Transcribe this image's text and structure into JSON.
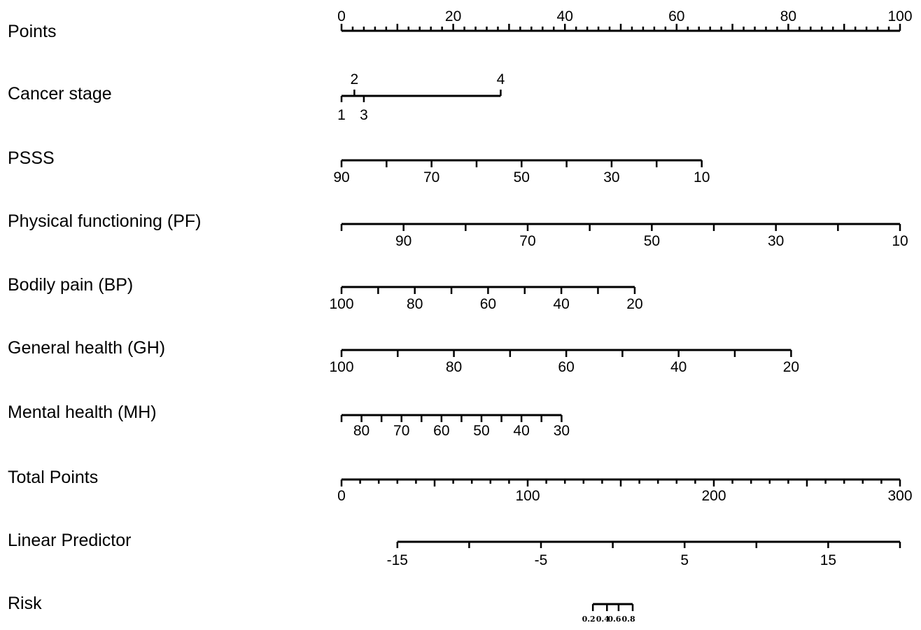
{
  "chart_data": {
    "type": "nomogram",
    "title": "",
    "rows": [
      {
        "label": "Points",
        "ticks": [
          {
            "value": 0,
            "label": "0"
          },
          {
            "value": 20,
            "label": "20"
          },
          {
            "value": 40,
            "label": "40"
          },
          {
            "value": 60,
            "label": "60"
          },
          {
            "value": 80,
            "label": "80"
          },
          {
            "value": 100,
            "label": "100"
          }
        ],
        "points_range": [
          0,
          100
        ],
        "minor_step": 2
      },
      {
        "label": "Cancer stage",
        "values": [
          {
            "level": "1",
            "points": 0
          },
          {
            "level": "2",
            "points": 2.3
          },
          {
            "level": "3",
            "points": 4.0
          },
          {
            "level": "4",
            "points": 28.5
          }
        ]
      },
      {
        "label": "PSSS",
        "ticks": [
          {
            "value": 90,
            "label": "90",
            "points": 0
          },
          {
            "value": 80,
            "label": "",
            "points": 8.06
          },
          {
            "value": 70,
            "label": "70",
            "points": 16.12
          },
          {
            "value": 60,
            "label": "",
            "points": 24.18
          },
          {
            "value": 50,
            "label": "50",
            "points": 32.24
          },
          {
            "value": 40,
            "label": "",
            "points": 40.3
          },
          {
            "value": 30,
            "label": "30",
            "points": 48.36
          },
          {
            "value": 20,
            "label": "",
            "points": 56.42
          },
          {
            "value": 10,
            "label": "10",
            "points": 64.5
          }
        ]
      },
      {
        "label": "Physical functioning (PF)",
        "ticks": [
          {
            "value": 100,
            "label": "",
            "points": 0
          },
          {
            "value": 90,
            "label": "90",
            "points": 11.11
          },
          {
            "value": 80,
            "label": "",
            "points": 22.22
          },
          {
            "value": 70,
            "label": "70",
            "points": 33.33
          },
          {
            "value": 60,
            "label": "",
            "points": 44.44
          },
          {
            "value": 50,
            "label": "50",
            "points": 55.56
          },
          {
            "value": 40,
            "label": "",
            "points": 66.67
          },
          {
            "value": 30,
            "label": "30",
            "points": 77.78
          },
          {
            "value": 20,
            "label": "",
            "points": 88.89
          },
          {
            "value": 10,
            "label": "10",
            "points": 100
          }
        ]
      },
      {
        "label": "Bodily pain (BP)",
        "ticks": [
          {
            "value": 100,
            "label": "100",
            "points": 0
          },
          {
            "value": 90,
            "label": "",
            "points": 6.56
          },
          {
            "value": 80,
            "label": "80",
            "points": 13.12
          },
          {
            "value": 70,
            "label": "",
            "points": 19.68
          },
          {
            "value": 60,
            "label": "60",
            "points": 26.24
          },
          {
            "value": 50,
            "label": "",
            "points": 32.8
          },
          {
            "value": 40,
            "label": "40",
            "points": 39.36
          },
          {
            "value": 30,
            "label": "",
            "points": 45.92
          },
          {
            "value": 20,
            "label": "20",
            "points": 52.5
          }
        ]
      },
      {
        "label": "General health (GH)",
        "ticks": [
          {
            "value": 100,
            "label": "100",
            "points": 0
          },
          {
            "value": 90,
            "label": "",
            "points": 10.06
          },
          {
            "value": 80,
            "label": "80",
            "points": 20.12
          },
          {
            "value": 70,
            "label": "",
            "points": 30.18
          },
          {
            "value": 60,
            "label": "60",
            "points": 40.24
          },
          {
            "value": 50,
            "label": "",
            "points": 50.3
          },
          {
            "value": 40,
            "label": "40",
            "points": 60.36
          },
          {
            "value": 30,
            "label": "",
            "points": 70.42
          },
          {
            "value": 20,
            "label": "20",
            "points": 80.5
          }
        ]
      },
      {
        "label": "Mental health (MH)",
        "ticks": [
          {
            "value": 85,
            "label": "",
            "points": 0
          },
          {
            "value": 80,
            "label": "80",
            "points": 3.58
          },
          {
            "value": 75,
            "label": "",
            "points": 7.16
          },
          {
            "value": 70,
            "label": "70",
            "points": 10.74
          },
          {
            "value": 65,
            "label": "",
            "points": 14.32
          },
          {
            "value": 60,
            "label": "60",
            "points": 17.9
          },
          {
            "value": 55,
            "label": "",
            "points": 21.48
          },
          {
            "value": 50,
            "label": "50",
            "points": 25.06
          },
          {
            "value": 45,
            "label": "",
            "points": 28.64
          },
          {
            "value": 40,
            "label": "40",
            "points": 32.22
          },
          {
            "value": 35,
            "label": "",
            "points": 35.8
          },
          {
            "value": 30,
            "label": "30",
            "points": 39.4
          }
        ]
      },
      {
        "label": "Total Points",
        "ticks": [
          {
            "value": 0,
            "label": "0"
          },
          {
            "value": 100,
            "label": "100"
          },
          {
            "value": 200,
            "label": "200"
          },
          {
            "value": 300,
            "label": "300"
          }
        ],
        "range": [
          0,
          300
        ],
        "minor_step": 10,
        "medium_step": 50
      },
      {
        "label": "Linear Predictor",
        "ticks": [
          {
            "value": -15,
            "label": "-15"
          },
          {
            "value": -10,
            "label": ""
          },
          {
            "value": -5,
            "label": "-5"
          },
          {
            "value": 0,
            "label": ""
          },
          {
            "value": 5,
            "label": "5"
          },
          {
            "value": 10,
            "label": ""
          },
          {
            "value": 15,
            "label": "15"
          },
          {
            "value": 20,
            "label": ""
          }
        ],
        "range": [
          -15,
          20
        ],
        "total_points_range": [
          30,
          300
        ]
      },
      {
        "label": "Risk",
        "ticks": [
          {
            "value": 0.2,
            "label": "0.2",
            "linear_predictor": -1.386
          },
          {
            "value": 0.4,
            "label": "0.4",
            "linear_predictor": -0.405
          },
          {
            "value": 0.6,
            "label": "0.6",
            "linear_predictor": 0.405
          },
          {
            "value": 0.8,
            "label": "0.8",
            "linear_predictor": 1.386
          }
        ]
      }
    ]
  }
}
